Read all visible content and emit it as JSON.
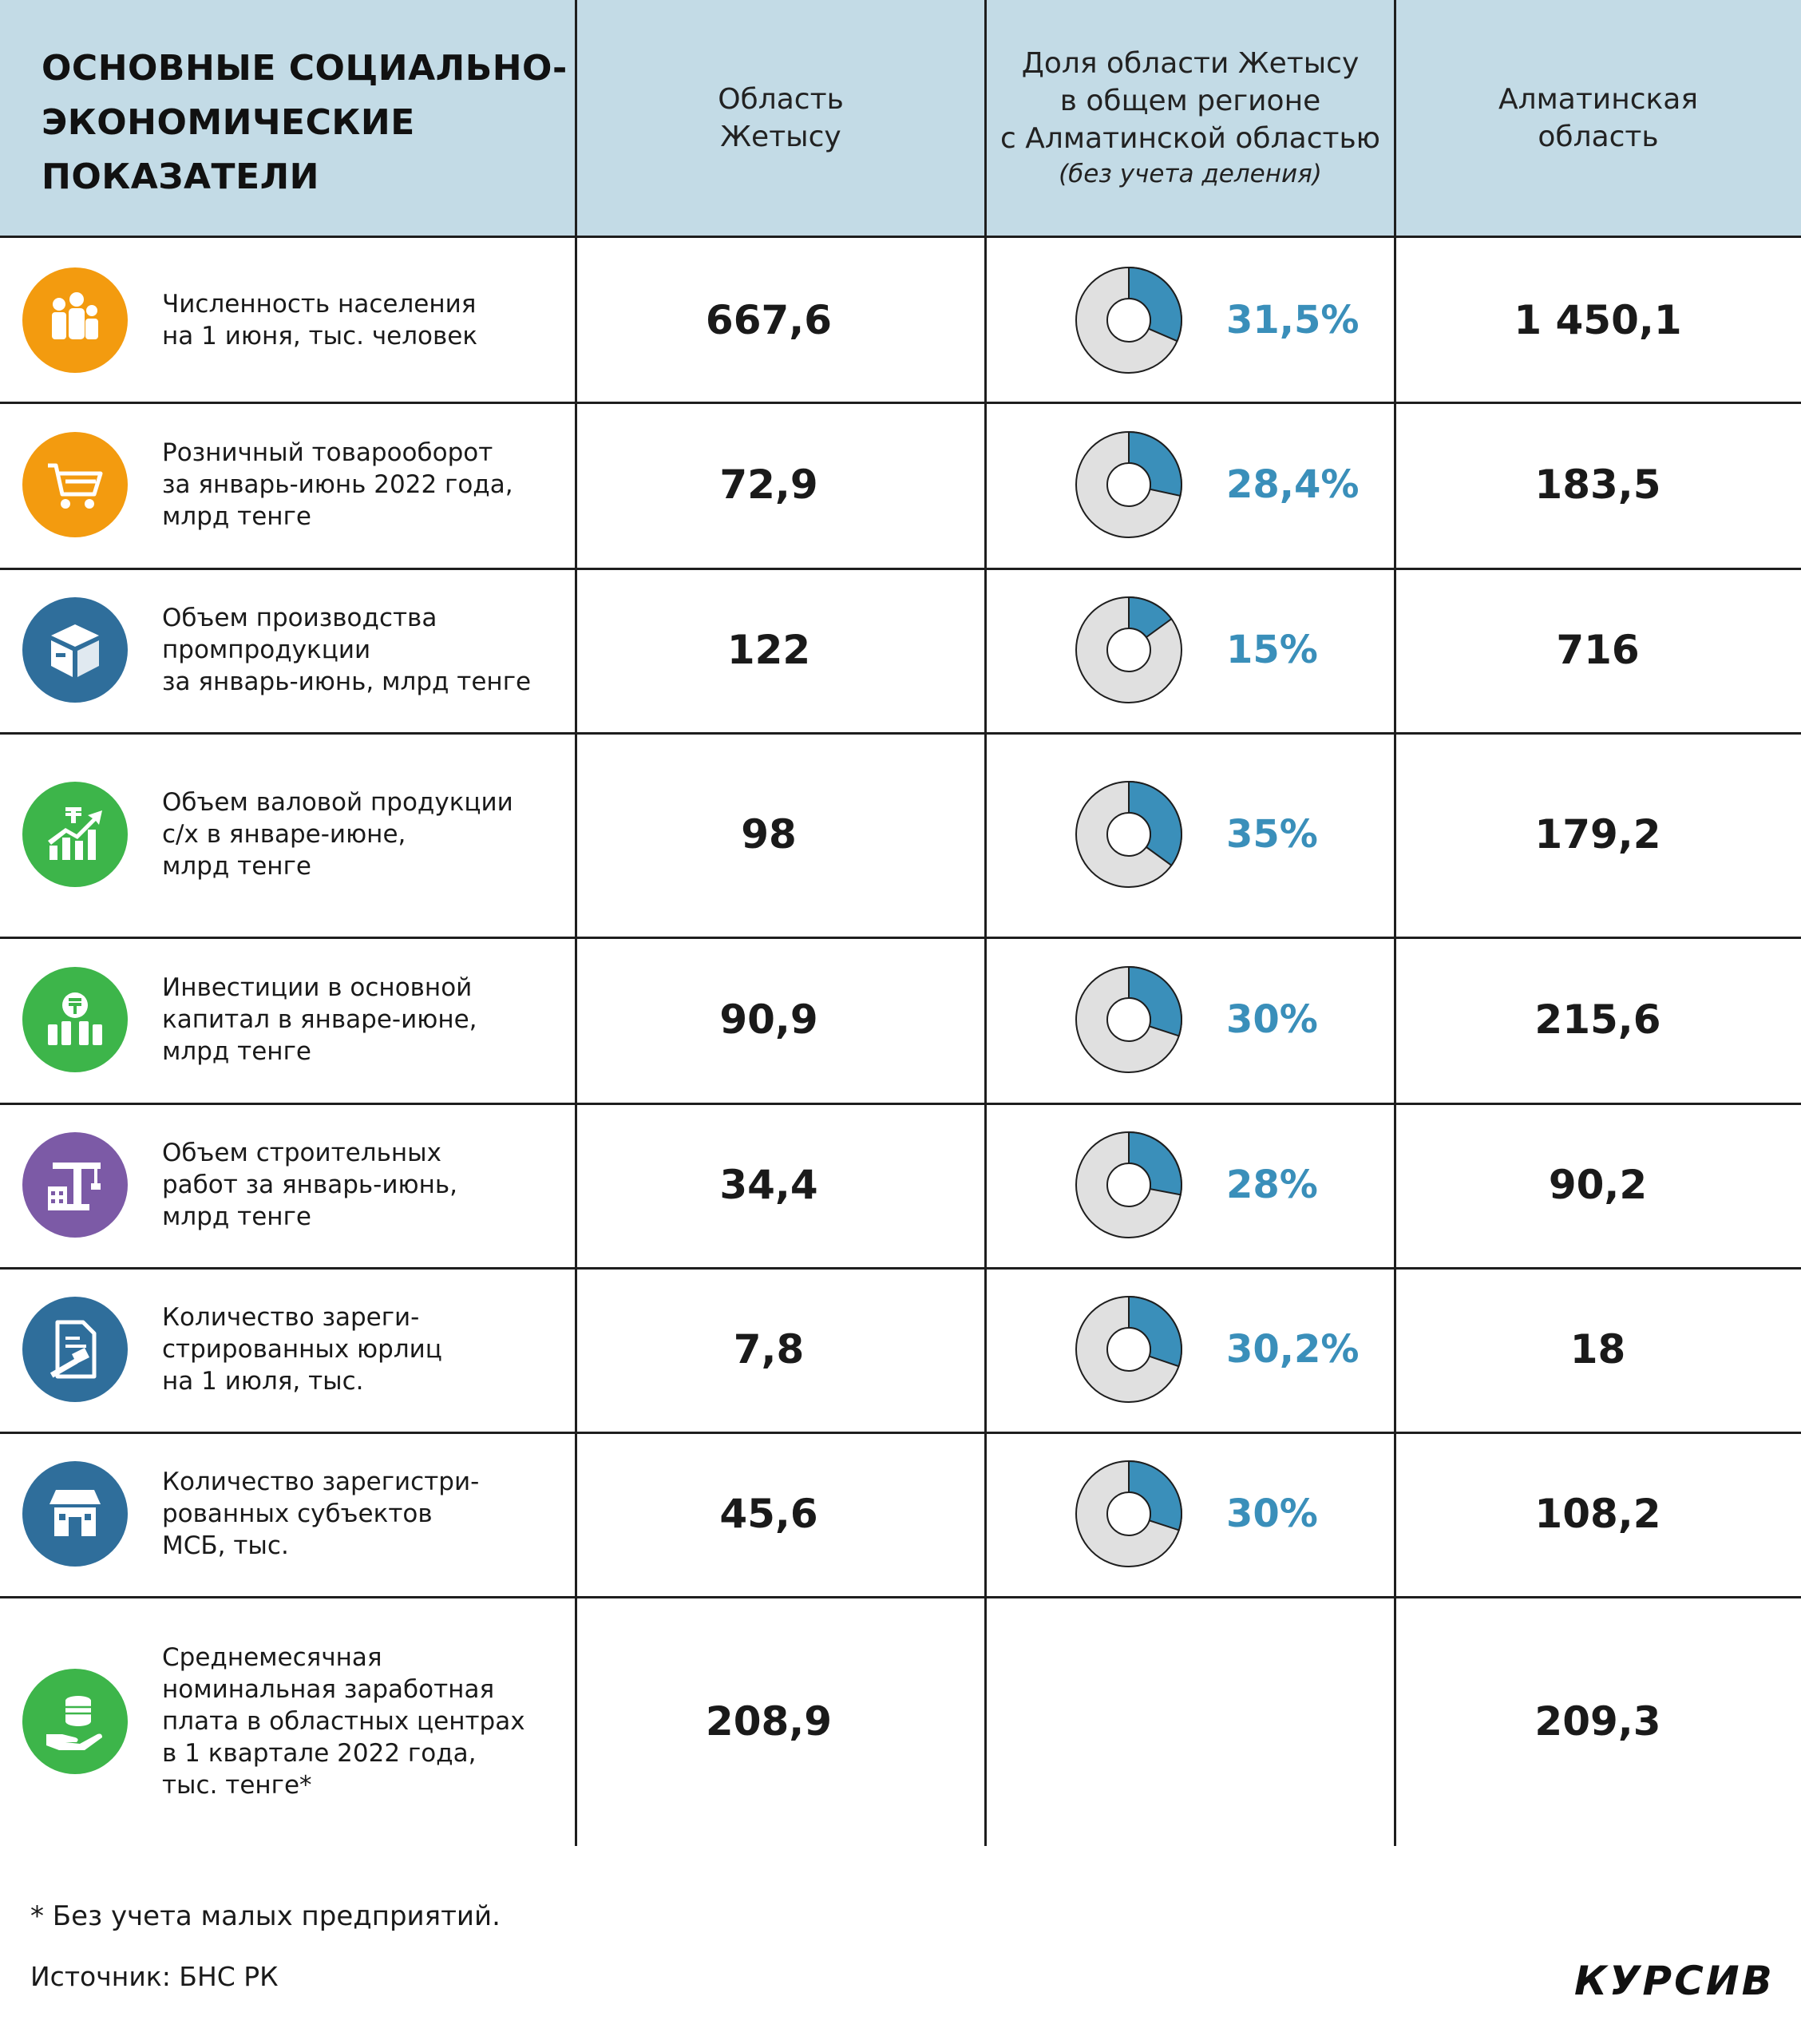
{
  "header": {
    "title": "ОСНОВНЫЕ СОЦИАЛЬНО-\nЭКОНОМИЧЕСКИЕ\nПОКАЗАТЕЛИ",
    "col1": "Область\nЖетысу",
    "col2": "Доля области Жетысу\nв общем регионе\nс Алматинской областью",
    "col2_note": "(без учета деления)",
    "col3": "Алматинская\nобласть"
  },
  "rows": [
    {
      "icon": "family-icon",
      "icon_color": "#f39b0f",
      "label": "Численность населения\nна 1 июня, тыс. человек",
      "zhetysu": "667,6",
      "share_text": "31,5%",
      "share": 31.5,
      "almaty": "1 450,1"
    },
    {
      "icon": "shopping-cart-icon",
      "icon_color": "#f39b0f",
      "label": "Розничный товарооборот\nза январь-июнь 2022 года,\nмлрд тенге",
      "zhetysu": "72,9",
      "share_text": "28,4%",
      "share": 28.4,
      "almaty": "183,5"
    },
    {
      "icon": "box-icon",
      "icon_color": "#2f6e9b",
      "label": "Объем производства\nпромпродукции\nза январь-июнь, млрд тенге",
      "zhetysu": "122",
      "share_text": "15%",
      "share": 15,
      "almaty": "716"
    },
    {
      "icon": "growth-chart-icon",
      "icon_color": "#3db54a",
      "label": "Объем валовой продукции\nс/х в январе-июне,\nмлрд тенге",
      "zhetysu": "98",
      "share_text": "35%",
      "share": 35,
      "almaty": "179,2"
    },
    {
      "icon": "investment-icon",
      "icon_color": "#3db54a",
      "label": "Инвестиции в основной\nкапитал в январе-июне,\nмлрд тенге",
      "zhetysu": "90,9",
      "share_text": "30%",
      "share": 30,
      "almaty": "215,6"
    },
    {
      "icon": "construction-crane-icon",
      "icon_color": "#7c5aa6",
      "label": "Объем строительных\nработ за январь-июнь,\nмлрд тенге",
      "zhetysu": "34,4",
      "share_text": "28%",
      "share": 28,
      "almaty": "90,2"
    },
    {
      "icon": "legal-document-icon",
      "icon_color": "#2f6e9b",
      "label": "Количество зареги-\nстрированных юрлиц\nна 1 июля, тыс.",
      "zhetysu": "7,8",
      "share_text": "30,2%",
      "share": 30.2,
      "almaty": "18"
    },
    {
      "icon": "shop-icon",
      "icon_color": "#2f6e9b",
      "label": "Количество зарегистри-\nрованных субъектов\nМСБ, тыс.",
      "zhetysu": "45,6",
      "share_text": "30%",
      "share": 30,
      "almaty": "108,2"
    },
    {
      "icon": "salary-coins-icon",
      "icon_color": "#3db54a",
      "label": "Среднемесячная\nноминальная заработная\nплата в областных центрах\nв 1 квартале 2022 года,\nтыс. тенге*",
      "zhetysu": "208,9",
      "share_text": "",
      "share": null,
      "almaty": "209,3"
    }
  ],
  "footnote": "* Без учета малых предприятий.",
  "source": "Источник: БНС РК",
  "logo": "КУРСИВ",
  "colors": {
    "share_fill": "#3a8fba",
    "donut_bg": "#e0e0e0",
    "header_bg": "#c3dbe6"
  },
  "chart_data": {
    "type": "table",
    "columns": [
      "Область Жетысу",
      "Доля области Жетысу в общем регионе с Алматинской областью (без учета деления)",
      "Алматинская область"
    ],
    "rows": [
      {
        "indicator": "Численность населения на 1 июня, тыс. человек",
        "zhetysu": 667.6,
        "share_pct": 31.5,
        "almaty": 1450.1
      },
      {
        "indicator": "Розничный товарооборот за январь-июнь 2022 года, млрд тенге",
        "zhetysu": 72.9,
        "share_pct": 28.4,
        "almaty": 183.5
      },
      {
        "indicator": "Объем производства промпродукции за январь-июнь, млрд тенге",
        "zhetysu": 122,
        "share_pct": 15,
        "almaty": 716
      },
      {
        "indicator": "Объем валовой продукции с/х в январе-июне, млрд тенге",
        "zhetysu": 98,
        "share_pct": 35,
        "almaty": 179.2
      },
      {
        "indicator": "Инвестиции в основной капитал в январе-июне, млрд тенге",
        "zhetysu": 90.9,
        "share_pct": 30,
        "almaty": 215.6
      },
      {
        "indicator": "Объем строительных работ за январь-июнь, млрд тенге",
        "zhetysu": 34.4,
        "share_pct": 28,
        "almaty": 90.2
      },
      {
        "indicator": "Количество зарегистрированных юрлиц на 1 июля, тыс.",
        "zhetysu": 7.8,
        "share_pct": 30.2,
        "almaty": 18
      },
      {
        "indicator": "Количество зарегистрированных субъектов МСБ, тыс.",
        "zhetysu": 45.6,
        "share_pct": 30,
        "almaty": 108.2
      },
      {
        "indicator": "Среднемесячная номинальная заработная плата в областных центрах в 1 квартале 2022 года, тыс. тенге*",
        "zhetysu": 208.9,
        "share_pct": null,
        "almaty": 209.3
      }
    ]
  }
}
